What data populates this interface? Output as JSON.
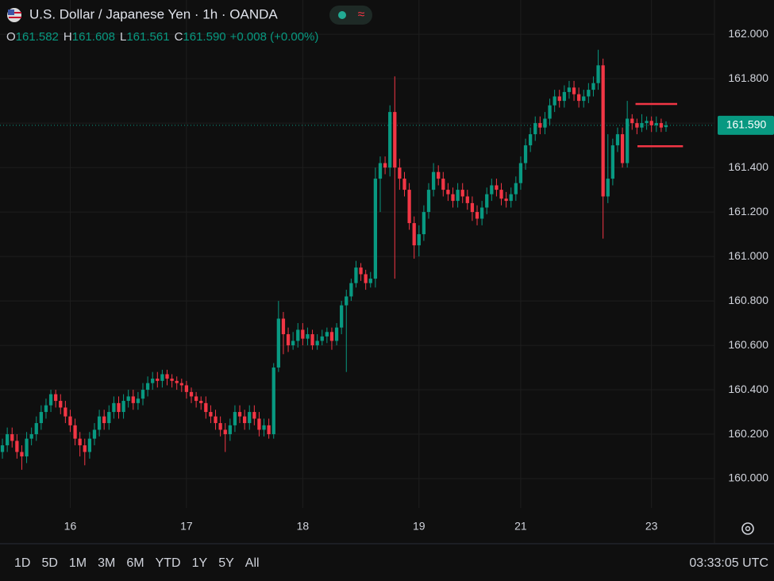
{
  "chart_data": {
    "type": "candlestick",
    "title": "U.S. Dollar / Japanese Yen · 1h · OANDA",
    "legend": [
      {
        "key": "O",
        "value": "161.582"
      },
      {
        "key": "H",
        "value": "161.608"
      },
      {
        "key": "L",
        "value": "161.561"
      },
      {
        "key": "C",
        "value": "161.590"
      }
    ],
    "change": "+0.008 (+0.00%)",
    "up_color": "#089981",
    "down_color": "#f23645",
    "open": [
      160.12,
      160.15,
      160.2,
      160.17,
      160.12,
      160.1,
      160.18,
      160.2,
      160.25,
      160.3,
      160.33,
      160.38,
      160.35,
      160.32,
      160.28,
      160.24,
      160.18,
      160.15,
      160.12,
      160.18,
      160.22,
      160.28,
      160.25,
      160.3,
      160.34,
      160.3,
      160.35,
      160.37,
      160.34,
      160.36,
      160.4,
      160.43,
      160.45,
      160.44,
      160.47,
      160.45,
      160.44,
      160.43,
      160.42,
      160.39,
      160.37,
      160.35,
      160.34,
      160.3,
      160.28,
      160.25,
      160.22,
      160.2,
      160.24,
      160.3,
      160.28,
      160.25,
      160.3,
      160.27,
      160.22,
      160.24,
      160.2,
      160.5,
      160.72,
      160.65,
      160.6,
      160.62,
      160.67,
      160.63,
      160.65,
      160.6,
      160.62,
      160.64,
      160.66,
      160.62,
      160.68,
      160.78,
      160.82,
      160.88,
      160.95,
      160.92,
      160.88,
      160.9,
      161.35,
      161.42,
      161.4,
      161.65,
      161.4,
      161.35,
      161.3,
      161.15,
      161.05,
      161.1,
      161.2,
      161.3,
      161.38,
      161.35,
      161.3,
      161.28,
      161.25,
      161.3,
      161.27,
      161.24,
      161.2,
      161.17,
      161.22,
      161.28,
      161.32,
      161.3,
      161.26,
      161.25,
      161.28,
      161.33,
      161.42,
      161.5,
      161.55,
      161.6,
      161.58,
      161.62,
      161.68,
      161.72,
      161.7,
      161.74,
      161.76,
      161.73,
      161.7,
      161.72,
      161.75,
      161.78,
      161.86,
      161.27,
      161.35,
      161.5,
      161.55,
      161.42,
      161.62,
      161.6,
      161.58,
      161.6,
      161.61,
      161.59,
      161.6,
      161.582
    ],
    "high": [
      160.18,
      160.23,
      160.23,
      160.2,
      160.15,
      160.21,
      160.23,
      160.28,
      160.33,
      160.36,
      160.4,
      160.4,
      160.38,
      160.35,
      160.31,
      160.27,
      160.21,
      160.18,
      160.21,
      160.25,
      160.31,
      160.31,
      160.33,
      160.37,
      160.37,
      160.38,
      160.4,
      160.4,
      160.39,
      160.43,
      160.46,
      160.48,
      160.48,
      160.49,
      160.49,
      160.47,
      160.46,
      160.45,
      160.44,
      160.41,
      160.39,
      160.37,
      160.37,
      160.33,
      160.31,
      160.28,
      160.25,
      160.27,
      160.33,
      160.33,
      160.31,
      160.33,
      160.33,
      160.3,
      160.27,
      160.27,
      160.52,
      160.8,
      160.75,
      160.68,
      160.66,
      160.7,
      160.7,
      160.68,
      160.67,
      160.65,
      160.67,
      160.68,
      160.68,
      160.7,
      160.8,
      160.85,
      160.9,
      160.98,
      160.97,
      160.94,
      160.93,
      161.4,
      161.45,
      161.45,
      161.68,
      161.81,
      161.44,
      161.38,
      161.33,
      161.18,
      161.14,
      161.23,
      161.33,
      161.42,
      161.41,
      161.38,
      161.33,
      161.31,
      161.33,
      161.33,
      161.3,
      161.27,
      161.23,
      161.25,
      161.31,
      161.35,
      161.35,
      161.33,
      161.29,
      161.31,
      161.36,
      161.45,
      161.53,
      161.58,
      161.63,
      161.63,
      161.65,
      161.71,
      161.75,
      161.75,
      161.77,
      161.79,
      161.79,
      161.76,
      161.75,
      161.78,
      161.81,
      161.93,
      161.89,
      161.55,
      161.53,
      161.58,
      161.58,
      161.7,
      161.64,
      161.62,
      161.64,
      161.63,
      161.63,
      161.63,
      161.62,
      161.608
    ],
    "low": [
      160.09,
      160.12,
      160.14,
      160.09,
      160.04,
      160.07,
      160.15,
      160.17,
      160.22,
      160.27,
      160.3,
      160.32,
      160.29,
      160.25,
      160.21,
      160.15,
      160.1,
      160.06,
      160.09,
      160.15,
      160.19,
      160.22,
      160.22,
      160.27,
      160.27,
      160.27,
      160.32,
      160.31,
      160.31,
      160.33,
      160.37,
      160.4,
      160.41,
      160.41,
      160.42,
      160.41,
      160.4,
      160.39,
      160.36,
      160.34,
      160.32,
      160.31,
      160.27,
      160.25,
      160.22,
      160.19,
      160.12,
      160.17,
      160.21,
      160.25,
      160.22,
      160.22,
      160.24,
      160.19,
      160.19,
      160.18,
      160.18,
      160.48,
      160.56,
      160.57,
      160.58,
      160.59,
      160.6,
      160.6,
      160.58,
      160.58,
      160.6,
      160.61,
      160.58,
      160.6,
      160.65,
      160.48,
      160.8,
      160.86,
      160.89,
      160.85,
      160.86,
      160.86,
      161.2,
      161.37,
      161.36,
      160.9,
      161.3,
      161.27,
      161.12,
      160.99,
      161.0,
      161.07,
      161.17,
      161.27,
      161.32,
      161.27,
      161.25,
      161.22,
      161.22,
      161.24,
      161.21,
      161.16,
      161.14,
      161.14,
      161.19,
      161.25,
      161.27,
      161.23,
      161.22,
      161.22,
      161.25,
      161.3,
      161.39,
      161.47,
      161.52,
      161.55,
      161.55,
      161.59,
      161.65,
      161.67,
      161.67,
      161.71,
      161.7,
      161.67,
      161.67,
      161.69,
      161.72,
      161.75,
      161.08,
      161.24,
      161.32,
      161.47,
      161.4,
      161.4,
      161.57,
      161.55,
      161.56,
      161.57,
      161.56,
      161.56,
      161.56,
      161.561
    ],
    "close": [
      160.15,
      160.2,
      160.17,
      160.12,
      160.1,
      160.18,
      160.2,
      160.25,
      160.3,
      160.33,
      160.38,
      160.35,
      160.32,
      160.28,
      160.24,
      160.18,
      160.15,
      160.12,
      160.18,
      160.22,
      160.28,
      160.25,
      160.3,
      160.34,
      160.3,
      160.35,
      160.37,
      160.34,
      160.36,
      160.4,
      160.43,
      160.45,
      160.44,
      160.47,
      160.45,
      160.44,
      160.43,
      160.42,
      160.39,
      160.37,
      160.35,
      160.34,
      160.3,
      160.28,
      160.25,
      160.22,
      160.2,
      160.24,
      160.3,
      160.28,
      160.25,
      160.3,
      160.27,
      160.22,
      160.24,
      160.2,
      160.5,
      160.72,
      160.65,
      160.6,
      160.62,
      160.67,
      160.63,
      160.65,
      160.6,
      160.62,
      160.64,
      160.66,
      160.62,
      160.68,
      160.78,
      160.82,
      160.88,
      160.95,
      160.92,
      160.88,
      160.9,
      161.35,
      161.42,
      161.4,
      161.65,
      161.4,
      161.35,
      161.3,
      161.15,
      161.05,
      161.1,
      161.2,
      161.3,
      161.38,
      161.35,
      161.3,
      161.28,
      161.25,
      161.3,
      161.27,
      161.24,
      161.2,
      161.17,
      161.22,
      161.28,
      161.32,
      161.3,
      161.26,
      161.25,
      161.28,
      161.33,
      161.42,
      161.5,
      161.55,
      161.6,
      161.58,
      161.62,
      161.68,
      161.72,
      161.7,
      161.74,
      161.76,
      161.73,
      161.7,
      161.72,
      161.75,
      161.78,
      161.86,
      161.27,
      161.35,
      161.5,
      161.55,
      161.42,
      161.62,
      161.6,
      161.58,
      161.6,
      161.61,
      161.59,
      161.6,
      161.58,
      161.59
    ],
    "xlim": [
      -0.5,
      147
    ],
    "xticks": [
      {
        "value": 14,
        "label": "16"
      },
      {
        "value": 38,
        "label": "17"
      },
      {
        "value": 62,
        "label": "18"
      },
      {
        "value": 86,
        "label": "19"
      },
      {
        "value": 107,
        "label": "21"
      },
      {
        "value": 134,
        "label": "23"
      }
    ],
    "ylim": [
      159.868,
      162.154
    ],
    "yticks": [
      {
        "value": 160,
        "label": "160.000"
      },
      {
        "value": 160.2,
        "label": "160.200"
      },
      {
        "value": 160.4,
        "label": "160.400"
      },
      {
        "value": 160.6,
        "label": "160.600"
      },
      {
        "value": 160.8,
        "label": "160.800"
      },
      {
        "value": 161,
        "label": "161.000"
      },
      {
        "value": 161.2,
        "label": "161.200"
      },
      {
        "value": 161.4,
        "label": "161.400"
      },
      {
        "value": 161.6,
        "label": "161.600"
      },
      {
        "value": 161.8,
        "label": "161.800"
      },
      {
        "value": 162,
        "label": "162.000"
      }
    ],
    "grid": true,
    "last_price": {
      "value": 161.59,
      "label": "161.590"
    },
    "drawings": [
      {
        "value": 161.686,
        "from": 130.7,
        "to": 139.3,
        "color": "#f23645"
      },
      {
        "value": 161.496,
        "from": 131.1,
        "to": 140.5,
        "color": "#f23645"
      }
    ]
  },
  "toolbar": {
    "ranges": [
      "1D",
      "5D",
      "1M",
      "3M",
      "6M",
      "YTD",
      "1Y",
      "5Y",
      "All"
    ],
    "clock": "03:33:05 UTC"
  }
}
